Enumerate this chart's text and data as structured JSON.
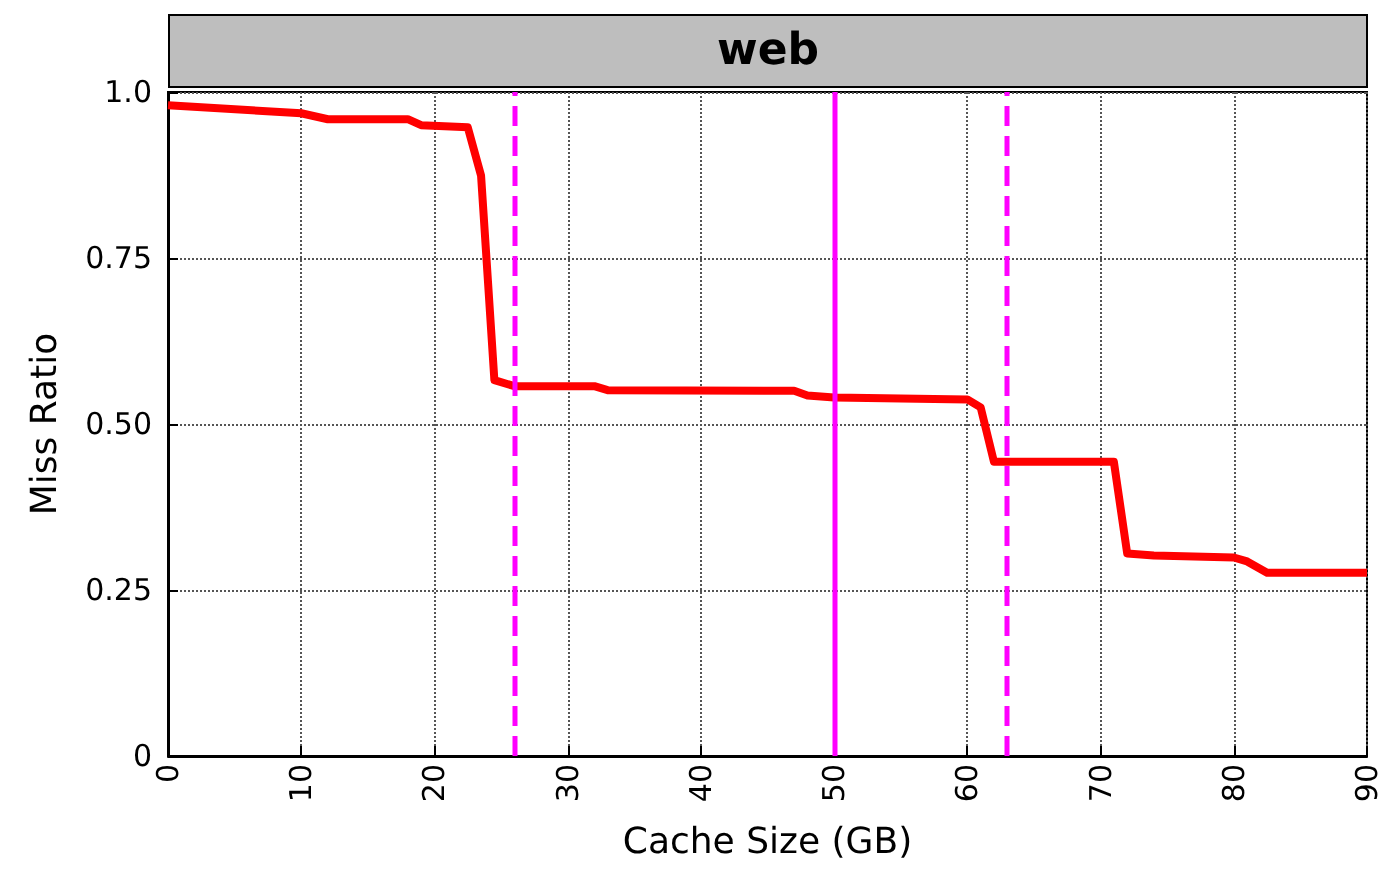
{
  "chart_data": {
    "type": "line",
    "title": "web",
    "xlabel": "Cache Size (GB)",
    "ylabel": "Miss Ratio",
    "x": [
      0,
      10,
      12,
      18,
      19,
      22.5,
      23.5,
      24.5,
      26,
      32,
      33,
      47,
      48,
      50,
      60,
      61,
      62,
      71,
      72,
      74,
      80,
      81,
      82.5,
      90
    ],
    "series": [
      {
        "color": "#ff0000",
        "values": [
          0.98,
          0.968,
          0.959,
          0.959,
          0.95,
          0.947,
          0.874,
          0.566,
          0.557,
          0.557,
          0.551,
          0.55,
          0.543,
          0.54,
          0.537,
          0.525,
          0.443,
          0.443,
          0.305,
          0.302,
          0.299,
          0.293,
          0.276,
          0.276
        ]
      }
    ],
    "xlim": [
      0,
      90
    ],
    "xticks": [
      0,
      10,
      20,
      30,
      40,
      50,
      60,
      70,
      80,
      90
    ],
    "ylim": [
      0,
      1
    ],
    "yticks": [
      0,
      0.25,
      {
        "value": 0.5,
        "label": "0.50"
      },
      0.75,
      {
        "value": 1,
        "label": "1.0"
      }
    ],
    "grid": true,
    "marker": "none",
    "line_style": "solid",
    "ref_lines": [
      {
        "axis": "x",
        "value": 26,
        "color": "#ff00ff",
        "line_style": "dashed"
      },
      {
        "axis": "x",
        "value": 50,
        "color": "#ff00ff",
        "line_style": "solid"
      },
      {
        "axis": "x",
        "value": 63,
        "color": "#ff00ff",
        "line_style": "dashed"
      }
    ]
  }
}
